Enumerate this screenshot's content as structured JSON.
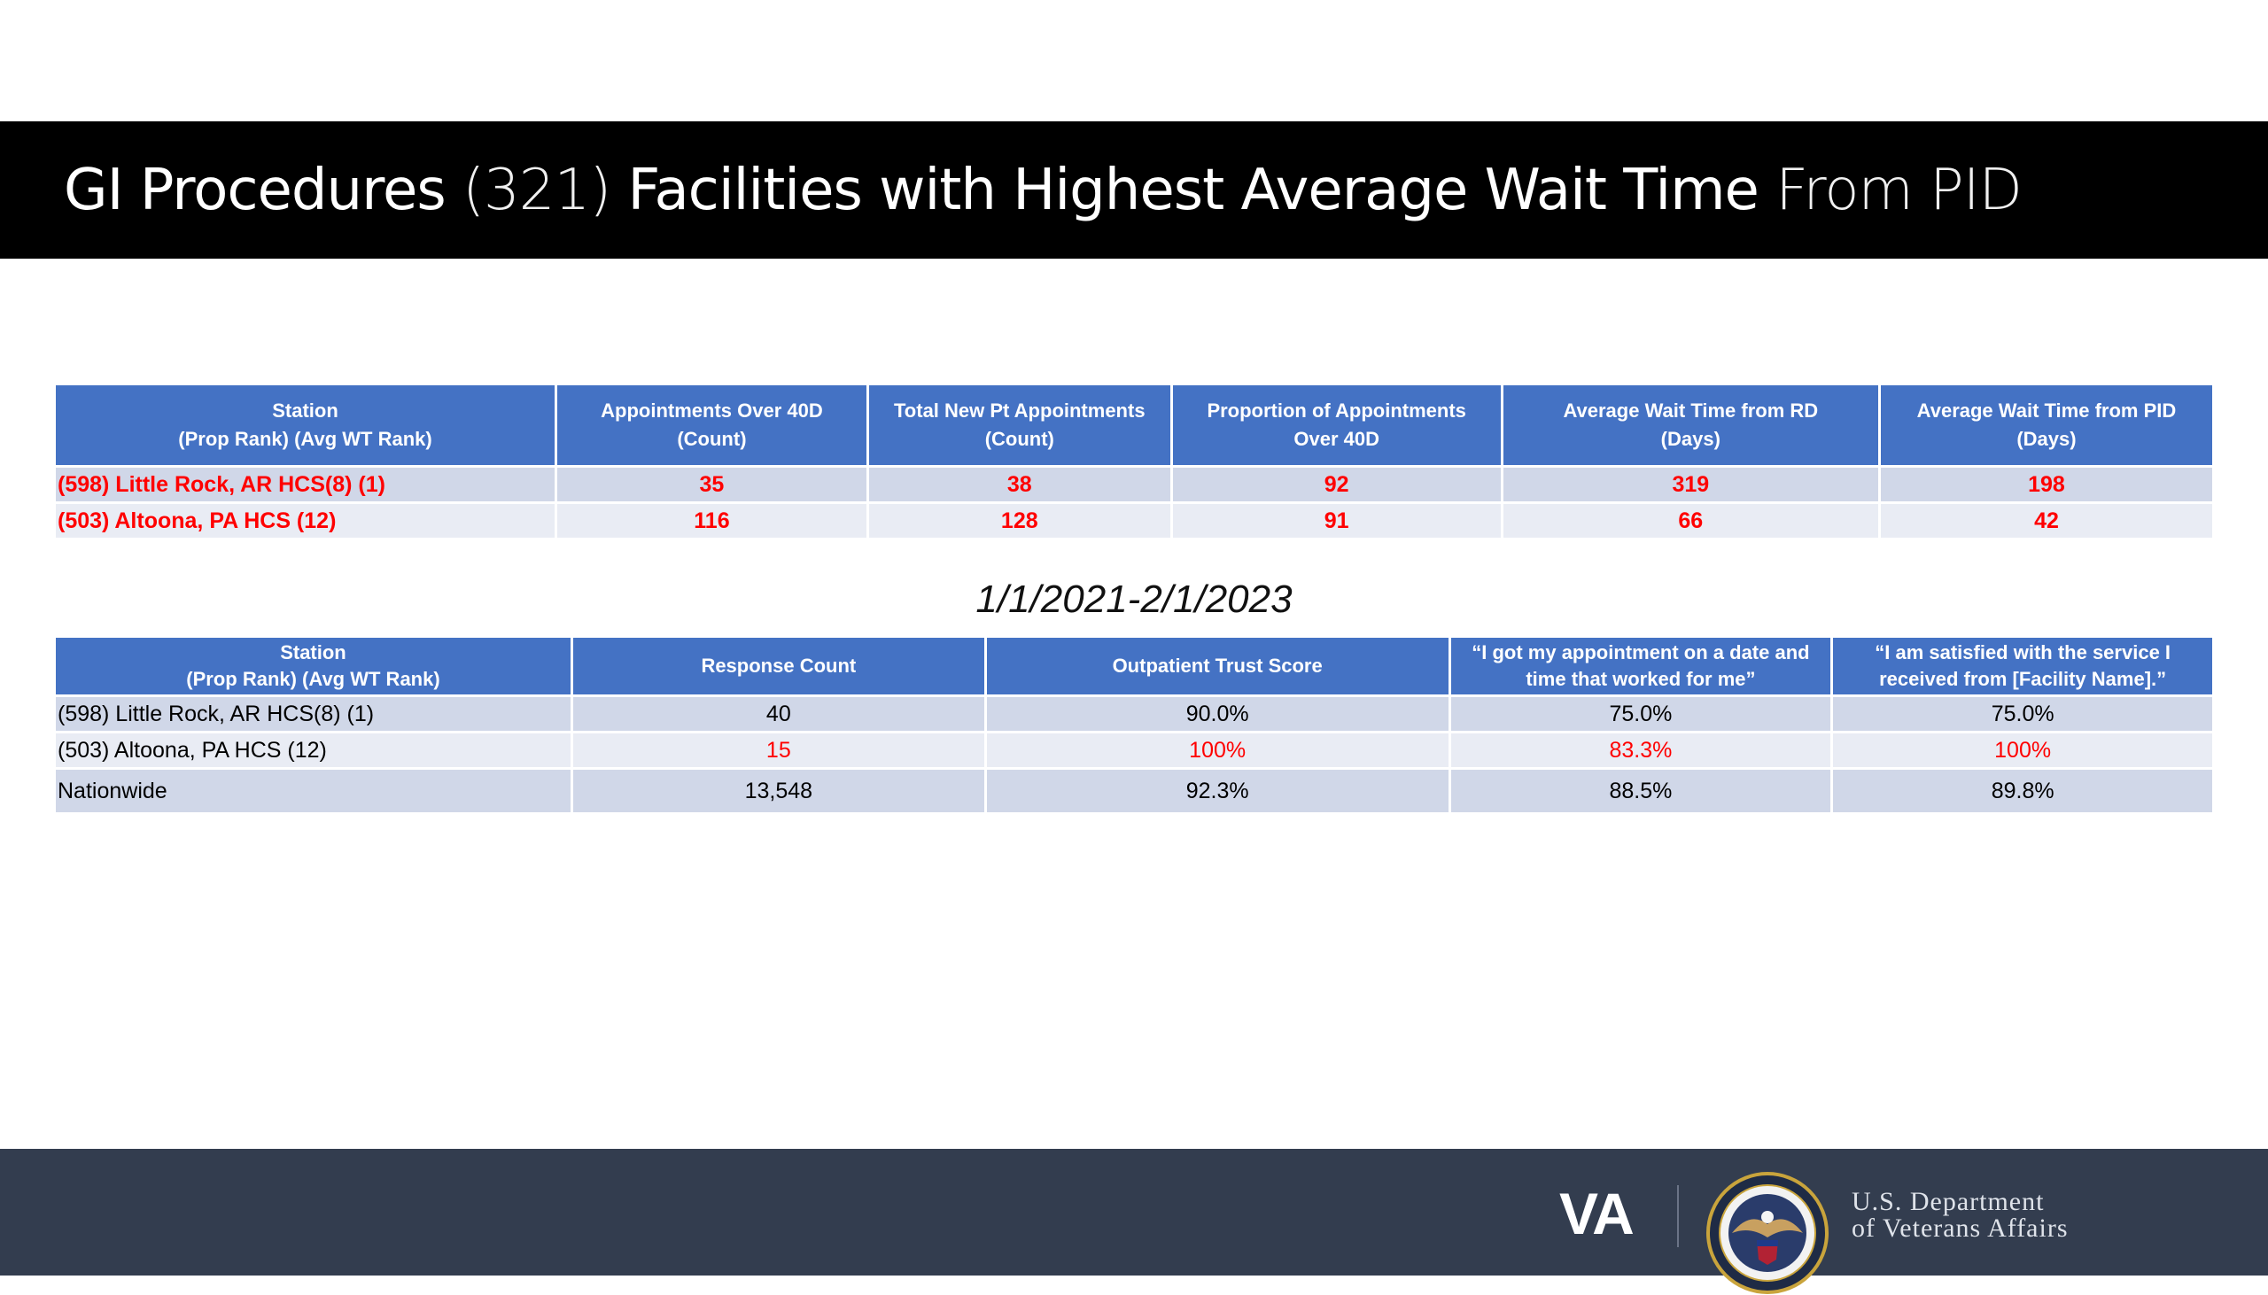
{
  "header": {
    "title_part1": "GI Procedures ",
    "title_part2": "(321) ",
    "title_part3": "Facilities with Highest Average Wait Time ",
    "title_part4": "From PID"
  },
  "table1": {
    "headers": [
      [
        "Station",
        "(Prop Rank) (Avg WT Rank)"
      ],
      [
        "Appointments Over 40D",
        "(Count)"
      ],
      [
        "Total New Pt Appointments",
        "(Count)"
      ],
      [
        "Proportion of Appointments",
        "Over 40D"
      ],
      [
        "Average Wait Time from RD",
        "(Days)"
      ],
      [
        "Average Wait Time from PID",
        "(Days)"
      ]
    ],
    "rows": [
      [
        "(598) Little Rock, AR HCS(8) (1)",
        "35",
        "38",
        "92",
        "319",
        "198"
      ],
      [
        "(503) Altoona, PA HCS (12)",
        "116",
        "128",
        "91",
        "66",
        "42"
      ]
    ]
  },
  "date_range": "1/1/2021-2/1/2023",
  "table2": {
    "headers": [
      [
        "Station",
        "(Prop Rank) (Avg WT Rank)"
      ],
      [
        "Response Count"
      ],
      [
        "Outpatient Trust Score"
      ],
      [
        "“I got my appointment on a date and",
        "time that worked for me”"
      ],
      [
        "“I am satisfied with the service I",
        "received from [Facility Name].”"
      ]
    ],
    "rows": [
      [
        "(598) Little Rock, AR HCS(8) (1)",
        "40",
        "90.0%",
        "75.0%",
        "75.0%"
      ],
      [
        "(503) Altoona, PA HCS (12)",
        "15",
        "100%",
        "83.3%",
        "100%"
      ],
      [
        "Nationwide",
        "13,548",
        "92.3%",
        "88.5%",
        "89.8%"
      ]
    ]
  },
  "footer": {
    "va_logo": "VA",
    "dept_line1": "U.S. Department",
    "dept_line2": "of Veterans Affairs",
    "seal_icon": "va-seal-icon"
  },
  "colors": {
    "header_blue": "#4472c4",
    "row_odd": "#d0d7e8",
    "row_even": "#e9ecf4",
    "highlight_red": "#ff0000",
    "footer_bg": "#333d4f"
  }
}
